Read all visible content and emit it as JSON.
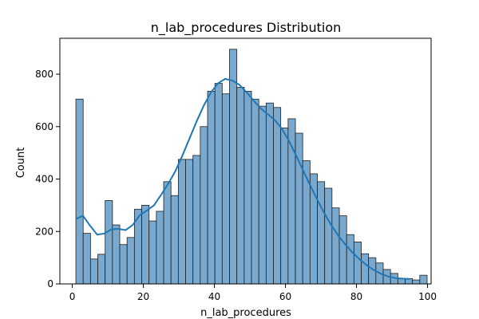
{
  "chart_data": {
    "type": "bar",
    "title": "n_lab_procedures Distribution",
    "xlabel": "n_lab_procedures",
    "ylabel": "Count",
    "xlim": [
      -3.5,
      101
    ],
    "ylim": [
      0,
      937
    ],
    "xticks": [
      0,
      20,
      40,
      60,
      80,
      100
    ],
    "yticks": [
      0,
      200,
      400,
      600,
      800
    ],
    "bin_start": 1,
    "bin_width": 2.06,
    "counts": [
      705,
      193,
      95,
      113,
      318,
      225,
      150,
      177,
      285,
      300,
      240,
      277,
      390,
      337,
      475,
      475,
      490,
      600,
      735,
      765,
      725,
      895,
      750,
      735,
      705,
      678,
      690,
      673,
      595,
      630,
      575,
      470,
      420,
      390,
      365,
      290,
      260,
      188,
      160,
      115,
      100,
      80,
      55,
      40,
      20,
      20,
      15,
      33
    ],
    "kde": {
      "x": [
        1,
        3,
        5,
        7,
        9,
        11,
        13,
        15,
        17,
        19,
        21,
        23,
        25,
        27,
        29,
        31,
        33,
        35,
        37,
        39,
        41,
        43,
        45,
        47,
        49,
        51,
        53,
        55,
        57,
        59,
        61,
        63,
        65,
        67,
        69,
        71,
        73,
        75,
        77,
        79,
        81,
        83,
        85,
        87,
        89,
        91,
        93,
        95
      ],
      "y": [
        248,
        260,
        222,
        188,
        192,
        208,
        210,
        205,
        225,
        262,
        280,
        300,
        340,
        382,
        430,
        490,
        555,
        620,
        680,
        730,
        765,
        782,
        776,
        760,
        732,
        700,
        670,
        648,
        625,
        592,
        545,
        490,
        432,
        375,
        320,
        268,
        222,
        182,
        148,
        118,
        92,
        70,
        52,
        38,
        28,
        22,
        20,
        19
      ]
    },
    "grid": false,
    "bar_color": "#7aa9cf",
    "line_color": "#1f77b4"
  }
}
